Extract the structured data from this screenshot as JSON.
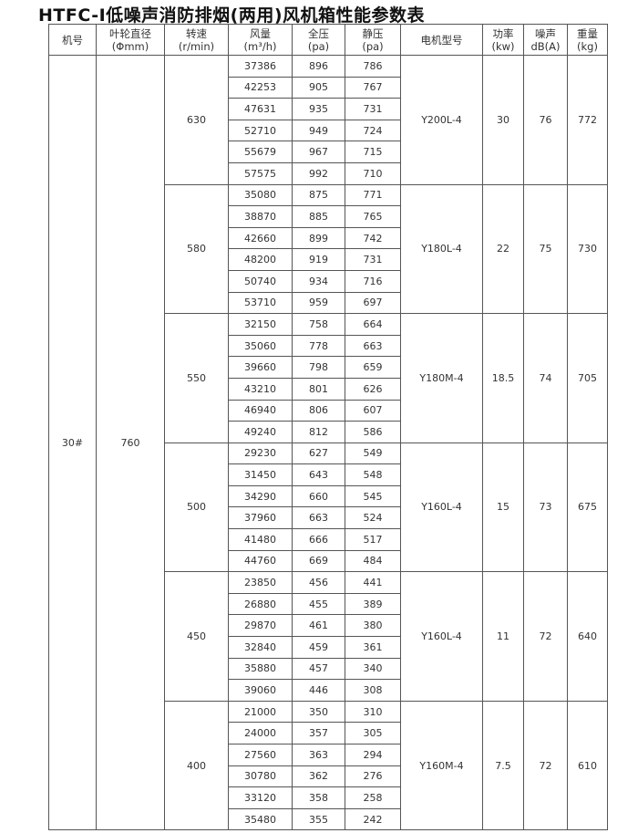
{
  "title": "HTFC-Ⅰ低噪声消防排烟(两用)风机箱性能参数表",
  "headers": [
    {
      "label": "机号",
      "unit": ""
    },
    {
      "label": "叶轮直径",
      "unit": "(Φmm)"
    },
    {
      "label": "转速",
      "unit": "(r/min)"
    },
    {
      "label": "风量",
      "unit": "(m³/h)"
    },
    {
      "label": "全压",
      "unit": "(pa)"
    },
    {
      "label": "静压",
      "unit": "(pa)"
    },
    {
      "label": "电机型号",
      "unit": ""
    },
    {
      "label": "功率",
      "unit": "(kw)"
    },
    {
      "label": "噪声",
      "unit": "dB(A)"
    },
    {
      "label": "重量",
      "unit": "(kg)"
    }
  ],
  "machine_no": "30#",
  "impeller_diameter": "760",
  "groups": [
    {
      "speed": "630",
      "motor": "Y200L-4",
      "power": "30",
      "noise": "76",
      "weight": "772",
      "rows": [
        [
          "37386",
          "896",
          "786"
        ],
        [
          "42253",
          "905",
          "767"
        ],
        [
          "47631",
          "935",
          "731"
        ],
        [
          "52710",
          "949",
          "724"
        ],
        [
          "55679",
          "967",
          "715"
        ],
        [
          "57575",
          "992",
          "710"
        ]
      ]
    },
    {
      "speed": "580",
      "motor": "Y180L-4",
      "power": "22",
      "noise": "75",
      "weight": "730",
      "rows": [
        [
          "35080",
          "875",
          "771"
        ],
        [
          "38870",
          "885",
          "765"
        ],
        [
          "42660",
          "899",
          "742"
        ],
        [
          "48200",
          "919",
          "731"
        ],
        [
          "50740",
          "934",
          "716"
        ],
        [
          "53710",
          "959",
          "697"
        ]
      ]
    },
    {
      "speed": "550",
      "motor": "Y180M-4",
      "power": "18.5",
      "noise": "74",
      "weight": "705",
      "rows": [
        [
          "32150",
          "758",
          "664"
        ],
        [
          "35060",
          "778",
          "663"
        ],
        [
          "39660",
          "798",
          "659"
        ],
        [
          "43210",
          "801",
          "626"
        ],
        [
          "46940",
          "806",
          "607"
        ],
        [
          "49240",
          "812",
          "586"
        ]
      ]
    },
    {
      "speed": "500",
      "motor": "Y160L-4",
      "power": "15",
      "noise": "73",
      "weight": "675",
      "rows": [
        [
          "29230",
          "627",
          "549"
        ],
        [
          "31450",
          "643",
          "548"
        ],
        [
          "34290",
          "660",
          "545"
        ],
        [
          "37960",
          "663",
          "524"
        ],
        [
          "41480",
          "666",
          "517"
        ],
        [
          "44760",
          "669",
          "484"
        ]
      ]
    },
    {
      "speed": "450",
      "motor": "Y160L-4",
      "power": "11",
      "noise": "72",
      "weight": "640",
      "rows": [
        [
          "23850",
          "456",
          "441"
        ],
        [
          "26880",
          "455",
          "389"
        ],
        [
          "29870",
          "461",
          "380"
        ],
        [
          "32840",
          "459",
          "361"
        ],
        [
          "35880",
          "457",
          "340"
        ],
        [
          "39060",
          "446",
          "308"
        ]
      ]
    },
    {
      "speed": "400",
      "motor": "Y160M-4",
      "power": "7.5",
      "noise": "72",
      "weight": "610",
      "rows": [
        [
          "21000",
          "350",
          "310"
        ],
        [
          "24000",
          "357",
          "305"
        ],
        [
          "27560",
          "363",
          "294"
        ],
        [
          "30780",
          "362",
          "276"
        ],
        [
          "33120",
          "358",
          "258"
        ],
        [
          "35480",
          "355",
          "242"
        ]
      ]
    }
  ]
}
